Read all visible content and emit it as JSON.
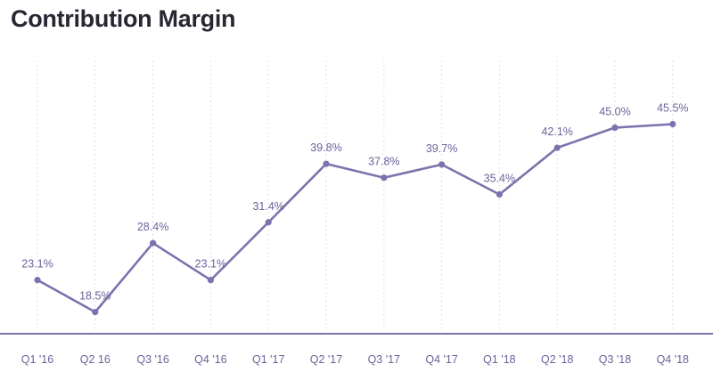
{
  "title": "Contribution Margin",
  "colors": {
    "line": "#7d72ad",
    "axis": "#7d72ad",
    "grid": "#d6d2e4",
    "label": "#6b639b",
    "title": "#2a2733"
  },
  "chart_data": {
    "type": "line",
    "title": "Contribution Margin",
    "xlabel": "",
    "ylabel": "",
    "categories": [
      "Q1 '16",
      "Q2 16",
      "Q3 '16",
      "Q4 '16",
      "Q1 '17",
      "Q2 '17",
      "Q3 '17",
      "Q4 '17",
      "Q1 '18",
      "Q2 '18",
      "Q3 '18",
      "Q4 '18"
    ],
    "series": [
      {
        "values": [
          23.1,
          18.5,
          28.4,
          23.1,
          31.4,
          39.8,
          37.8,
          39.7,
          35.4,
          42.1,
          45.0,
          45.5
        ],
        "labels": [
          "23.1%",
          "18.5%",
          "28.4%",
          "23.1%",
          "31.4%",
          "39.8%",
          "37.8%",
          "39.7%",
          "35.4%",
          "42.1%",
          "45.0%",
          "45.5%"
        ]
      }
    ],
    "grid": "vertical dotted",
    "legend": "none"
  }
}
